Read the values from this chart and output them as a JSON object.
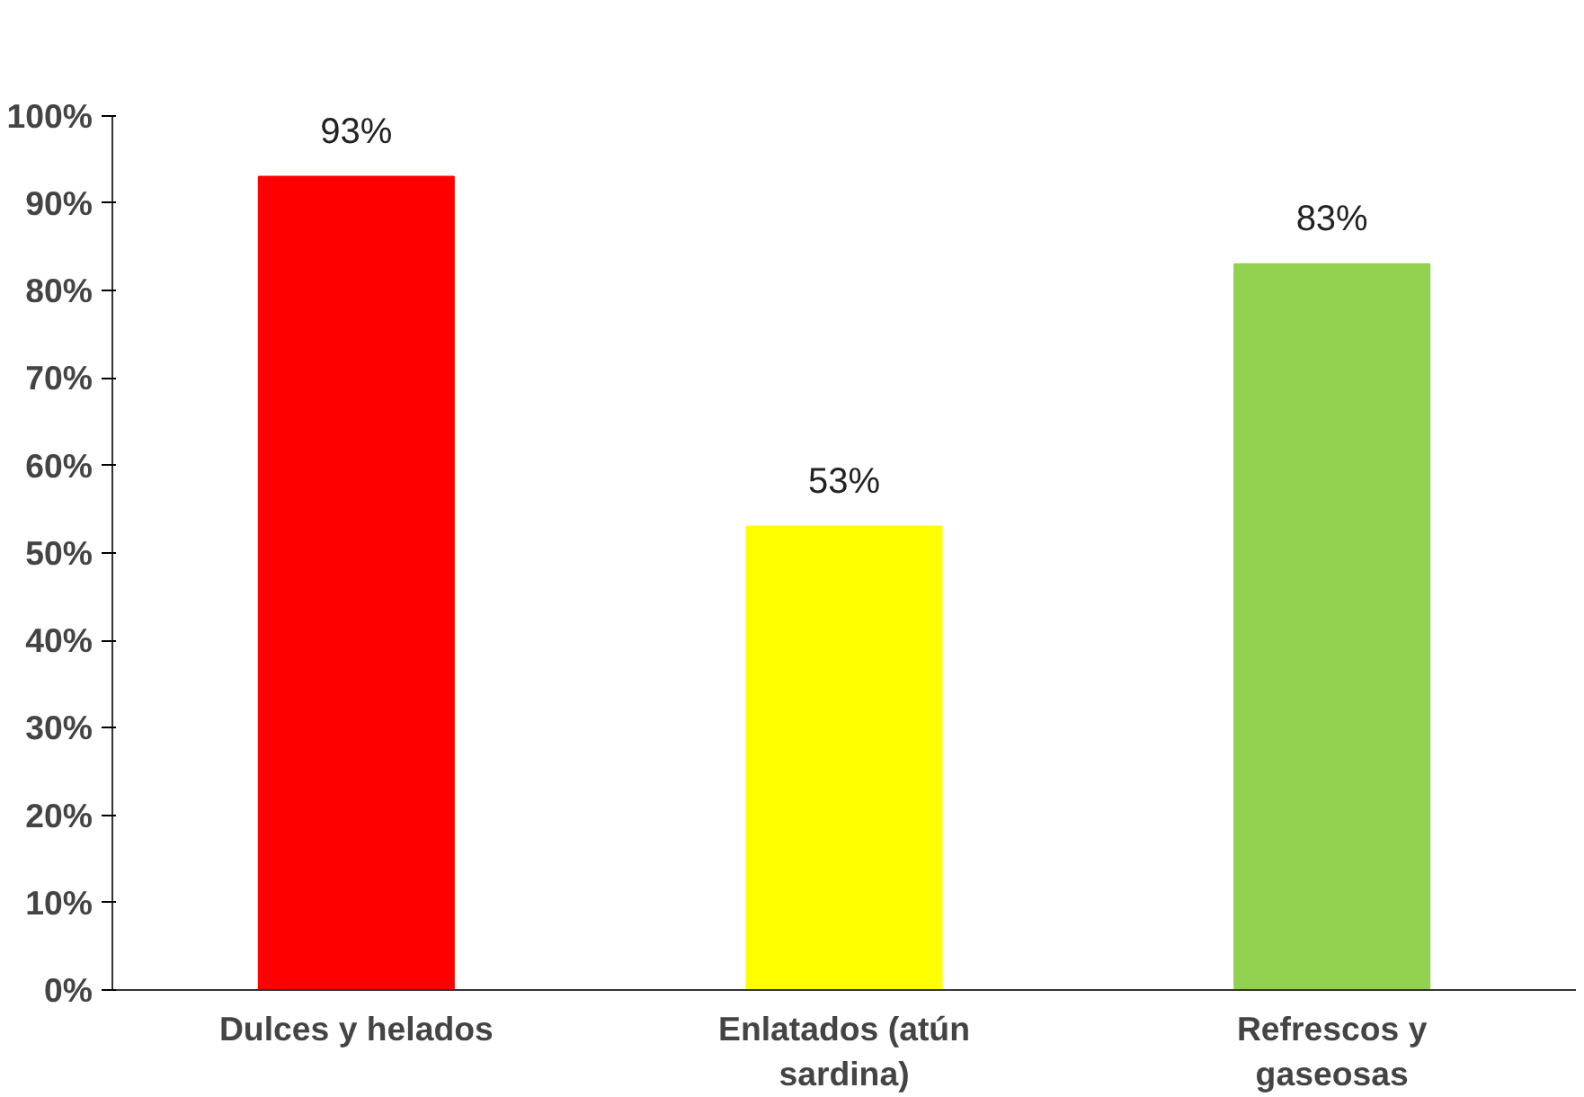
{
  "chart_data": {
    "type": "bar",
    "categories": [
      "Dulces y helados",
      "Enlatados (atún sardina)",
      "Refrescos y gaseosas"
    ],
    "values": [
      93,
      53,
      83
    ],
    "colors": [
      "#ff0000",
      "#ffff00",
      "#92d050"
    ],
    "value_labels": [
      "93%",
      "53%",
      "83%"
    ],
    "ylim": [
      0,
      100
    ],
    "yticks": [
      {
        "value": 0,
        "label": "0%"
      },
      {
        "value": 10,
        "label": "10%"
      },
      {
        "value": 20,
        "label": "20%"
      },
      {
        "value": 30,
        "label": "30%"
      },
      {
        "value": 40,
        "label": "40%"
      },
      {
        "value": 50,
        "label": "50%"
      },
      {
        "value": 60,
        "label": "60%"
      },
      {
        "value": 70,
        "label": "70%"
      },
      {
        "value": 80,
        "label": "80%"
      },
      {
        "value": 90,
        "label": "90%"
      },
      {
        "value": 100,
        "label": "100%"
      }
    ],
    "grid": false
  }
}
